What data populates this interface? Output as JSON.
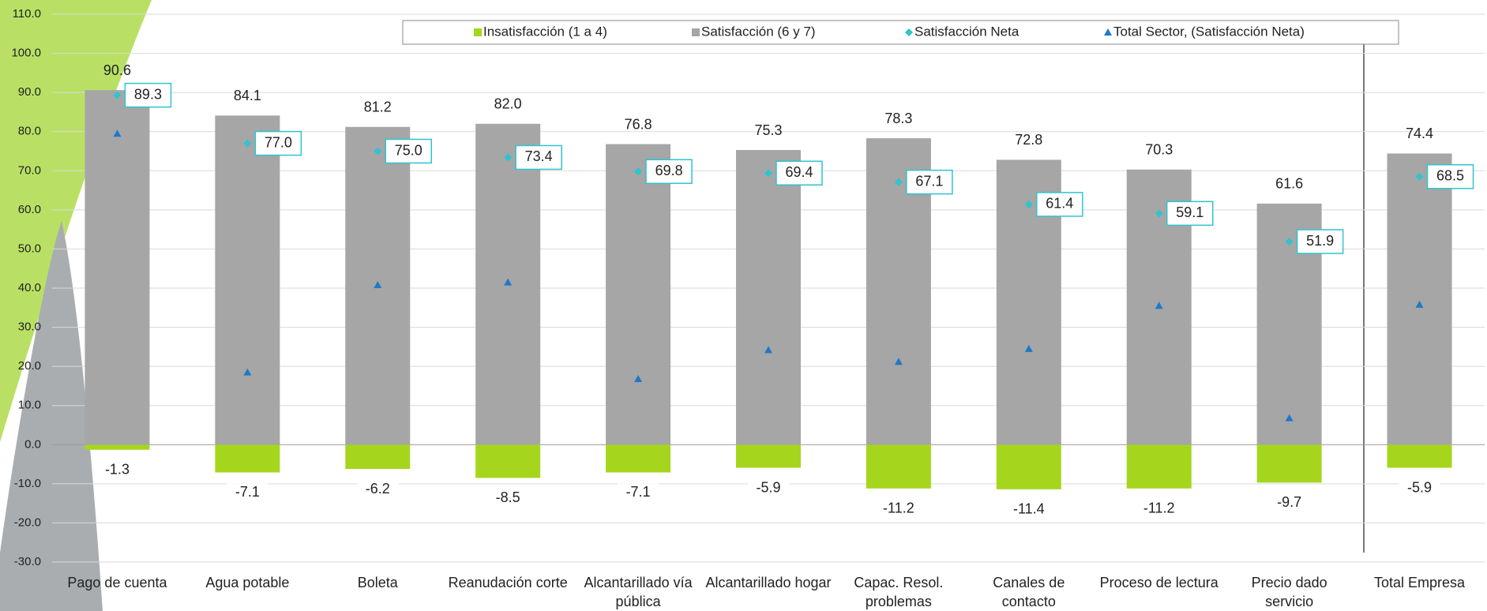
{
  "chart_data": {
    "type": "bar",
    "categories": [
      "Pago de cuenta",
      "Agua potable",
      "Boleta",
      "Reanudación corte",
      "Alcantarillado vía pública",
      "Alcantarillado hogar",
      "Capac. Resol. problemas",
      "Canales de contacto",
      "Proceso de lectura",
      "Precio dado servicio",
      "Total Empresa"
    ],
    "series": [
      {
        "name": "Insatisfacción (1 a 4)",
        "color": "#a5d61d",
        "kind": "bar",
        "values": [
          -1.3,
          -7.1,
          -6.2,
          -8.5,
          -7.1,
          -5.9,
          -11.2,
          -11.4,
          -11.2,
          -9.7,
          -5.9
        ]
      },
      {
        "name": "Satisfacción (6 y 7)",
        "color": "#a6a6a6",
        "kind": "bar",
        "values": [
          90.6,
          84.1,
          81.2,
          82.0,
          76.8,
          75.3,
          78.3,
          72.8,
          70.3,
          61.6,
          74.4
        ],
        "value_labels": [
          "90.6",
          "84.1",
          "81.2",
          "82.0",
          "76.8",
          "75.3",
          "78.3",
          "72.8",
          "70.3",
          "61.6",
          "74.4"
        ]
      },
      {
        "name": "Satisfacción Neta",
        "color": "#2ec4d0",
        "kind": "diamond",
        "values": [
          89.3,
          77.0,
          75.0,
          73.4,
          69.8,
          69.4,
          67.1,
          61.4,
          59.1,
          51.9,
          68.5
        ],
        "value_labels": [
          "89.3",
          "77.0",
          "75.0",
          "73.4",
          "69.8",
          "69.4",
          "67.1",
          "61.4",
          "59.1",
          "51.9",
          "68.5"
        ]
      },
      {
        "name": "Total Sector, (Satisfacción Neta)",
        "color": "#1f78c8",
        "kind": "triangle",
        "values": [
          79.5,
          18.5,
          40.8,
          41.5,
          16.8,
          24.2,
          21.2,
          24.5,
          35.5,
          6.8,
          35.8
        ]
      }
    ],
    "ylim": [
      -30,
      110
    ],
    "yticks": [
      {
        "value": -30,
        "label": "-30.0"
      },
      {
        "value": -20,
        "label": "-20.0"
      },
      {
        "value": -10,
        "label": "-10.0"
      },
      {
        "value": 0,
        "label": "0.0"
      },
      {
        "value": 10,
        "label": "10.0"
      },
      {
        "value": 20,
        "label": "20.0"
      },
      {
        "value": 30,
        "label": "30.0"
      },
      {
        "value": 40,
        "label": "40.0"
      },
      {
        "value": 50,
        "label": "50.0"
      },
      {
        "value": 60,
        "label": "60.0"
      },
      {
        "value": 70,
        "label": "70.0"
      },
      {
        "value": 80,
        "label": "80.0"
      },
      {
        "value": 90,
        "label": "90.0"
      },
      {
        "value": 100,
        "label": "100.0"
      },
      {
        "value": 110,
        "label": "110.0"
      }
    ],
    "grid": true,
    "legend": "top"
  }
}
